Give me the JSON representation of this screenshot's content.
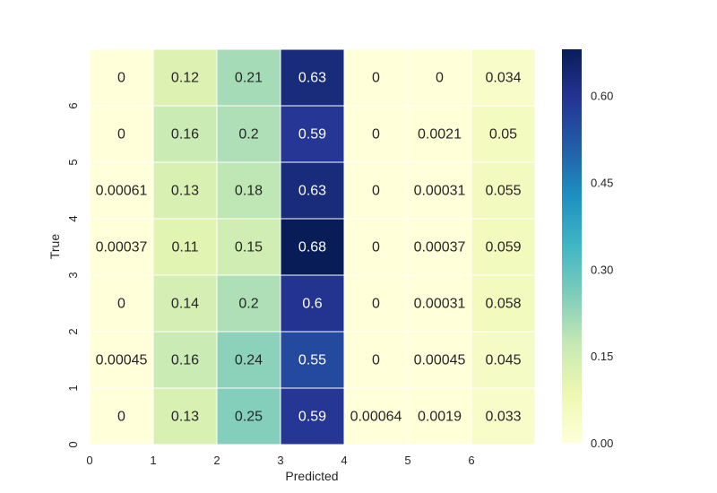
{
  "chart_data": {
    "type": "heatmap",
    "title": "",
    "xlabel": "Predicted",
    "ylabel": "True",
    "x_tick_labels": [
      "0",
      "1",
      "2",
      "3",
      "4",
      "5",
      "6"
    ],
    "y_tick_labels": [
      "0",
      "1",
      "2",
      "3",
      "4",
      "5",
      "6"
    ],
    "rows_top_to_bottom": [
      {
        "values": [
          0,
          0.12,
          0.21,
          0.63,
          0,
          0,
          0.034
        ],
        "labels": [
          "0",
          "0.12",
          "0.21",
          "0.63",
          "0",
          "0",
          "0.034"
        ]
      },
      {
        "values": [
          0,
          0.16,
          0.2,
          0.59,
          0,
          0.0021,
          0.05
        ],
        "labels": [
          "0",
          "0.16",
          "0.2",
          "0.59",
          "0",
          "0.0021",
          "0.05"
        ]
      },
      {
        "values": [
          0.00061,
          0.13,
          0.18,
          0.63,
          0,
          0.00031,
          0.055
        ],
        "labels": [
          "0.00061",
          "0.13",
          "0.18",
          "0.63",
          "0",
          "0.00031",
          "0.055"
        ]
      },
      {
        "values": [
          0.00037,
          0.11,
          0.15,
          0.68,
          0,
          0.00037,
          0.059
        ],
        "labels": [
          "0.00037",
          "0.11",
          "0.15",
          "0.68",
          "0",
          "0.00037",
          "0.059"
        ]
      },
      {
        "values": [
          0,
          0.14,
          0.2,
          0.6,
          0,
          0.00031,
          0.058
        ],
        "labels": [
          "0",
          "0.14",
          "0.2",
          "0.6",
          "0",
          "0.00031",
          "0.058"
        ]
      },
      {
        "values": [
          0.00045,
          0.16,
          0.24,
          0.55,
          0,
          0.00045,
          0.045
        ],
        "labels": [
          "0.00045",
          "0.16",
          "0.24",
          "0.55",
          "0",
          "0.00045",
          "0.045"
        ]
      },
      {
        "values": [
          0,
          0.13,
          0.25,
          0.59,
          0.00064,
          0.0019,
          0.033
        ],
        "labels": [
          "0",
          "0.13",
          "0.25",
          "0.59",
          "0.00064",
          "0.0019",
          "0.033"
        ]
      }
    ],
    "colorbar": {
      "min": 0,
      "max": 0.68,
      "ticks": [
        0.0,
        0.15,
        0.3,
        0.45,
        0.6
      ],
      "tick_labels": [
        "0.00",
        "0.15",
        "0.30",
        "0.45",
        "0.60"
      ]
    },
    "colormap": "YlGnBu",
    "colormap_stops": [
      "#ffffd9",
      "#edf8b1",
      "#c7e9b4",
      "#7fcdbb",
      "#41b6c4",
      "#1d91c0",
      "#225ea8",
      "#253494",
      "#081d58"
    ],
    "grid": false
  }
}
